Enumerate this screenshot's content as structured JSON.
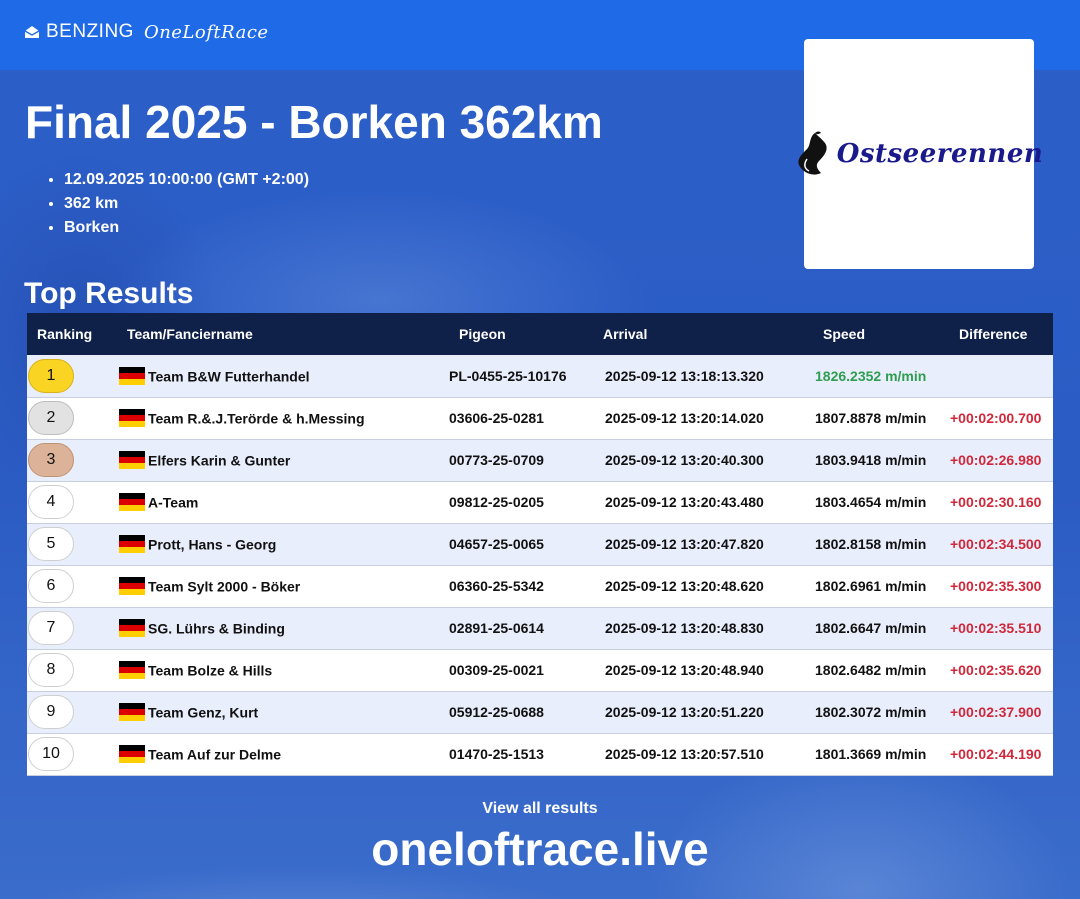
{
  "brand": {
    "name": "BENZING",
    "product": "OneLoftRace",
    "icon": "envelope-icon"
  },
  "race": {
    "title": "Final 2025 - Borken 362km",
    "details": [
      "12.09.2025 10:00:00 (GMT +2:00)",
      "362 km",
      "Borken"
    ],
    "logo_text": "Ostseerennen"
  },
  "section_title": "Top Results",
  "table": {
    "columns": [
      "Ranking",
      "Team/Fanciername",
      "Pigeon",
      "Arrival",
      "Speed",
      "Difference"
    ],
    "rows": [
      {
        "rank": "1",
        "team": "Team B&W Futterhandel",
        "pigeon": "PL-0455-25-10176",
        "arrival": "2025-09-12 13:18:13.320",
        "speed": "1826.2352 m/min",
        "diff": ""
      },
      {
        "rank": "2",
        "team": "Team R.&.J.Terörde & h.Messing",
        "pigeon": "03606-25-0281",
        "arrival": "2025-09-12 13:20:14.020",
        "speed": "1807.8878 m/min",
        "diff": "+00:02:00.700"
      },
      {
        "rank": "3",
        "team": "Elfers Karin & Gunter",
        "pigeon": "00773-25-0709",
        "arrival": "2025-09-12 13:20:40.300",
        "speed": "1803.9418 m/min",
        "diff": "+00:02:26.980"
      },
      {
        "rank": "4",
        "team": "A-Team",
        "pigeon": "09812-25-0205",
        "arrival": "2025-09-12 13:20:43.480",
        "speed": "1803.4654 m/min",
        "diff": "+00:02:30.160"
      },
      {
        "rank": "5",
        "team": "Prott, Hans - Georg",
        "pigeon": "04657-25-0065",
        "arrival": "2025-09-12 13:20:47.820",
        "speed": "1802.8158 m/min",
        "diff": "+00:02:34.500"
      },
      {
        "rank": "6",
        "team": "Team Sylt 2000 - Böker",
        "pigeon": "06360-25-5342",
        "arrival": "2025-09-12 13:20:48.620",
        "speed": "1802.6961 m/min",
        "diff": "+00:02:35.300"
      },
      {
        "rank": "7",
        "team": "SG. Lührs & Binding",
        "pigeon": "02891-25-0614",
        "arrival": "2025-09-12 13:20:48.830",
        "speed": "1802.6647 m/min",
        "diff": "+00:02:35.510"
      },
      {
        "rank": "8",
        "team": "Team Bolze & Hills",
        "pigeon": "00309-25-0021",
        "arrival": "2025-09-12 13:20:48.940",
        "speed": "1802.6482 m/min",
        "diff": "+00:02:35.620"
      },
      {
        "rank": "9",
        "team": "Team Genz, Kurt",
        "pigeon": "05912-25-0688",
        "arrival": "2025-09-12 13:20:51.220",
        "speed": "1802.3072 m/min",
        "diff": "+00:02:37.900"
      },
      {
        "rank": "10",
        "team": "Team Auf zur Delme",
        "pigeon": "01470-25-1513",
        "arrival": "2025-09-12 13:20:57.510",
        "speed": "1801.3669 m/min",
        "diff": "+00:02:44.190"
      }
    ],
    "flag": "germany-flag-icon"
  },
  "footer": {
    "view_all": "View all results",
    "site": "oneloftrace.live"
  },
  "colors": {
    "topbar": "#1f6ae6",
    "header_row": "#0f2148",
    "speed_best": "#2f9d4f",
    "difference": "#d0283a",
    "gold": "#f9d423",
    "silver": "#e2e2e2",
    "bronze": "#dcb398"
  }
}
